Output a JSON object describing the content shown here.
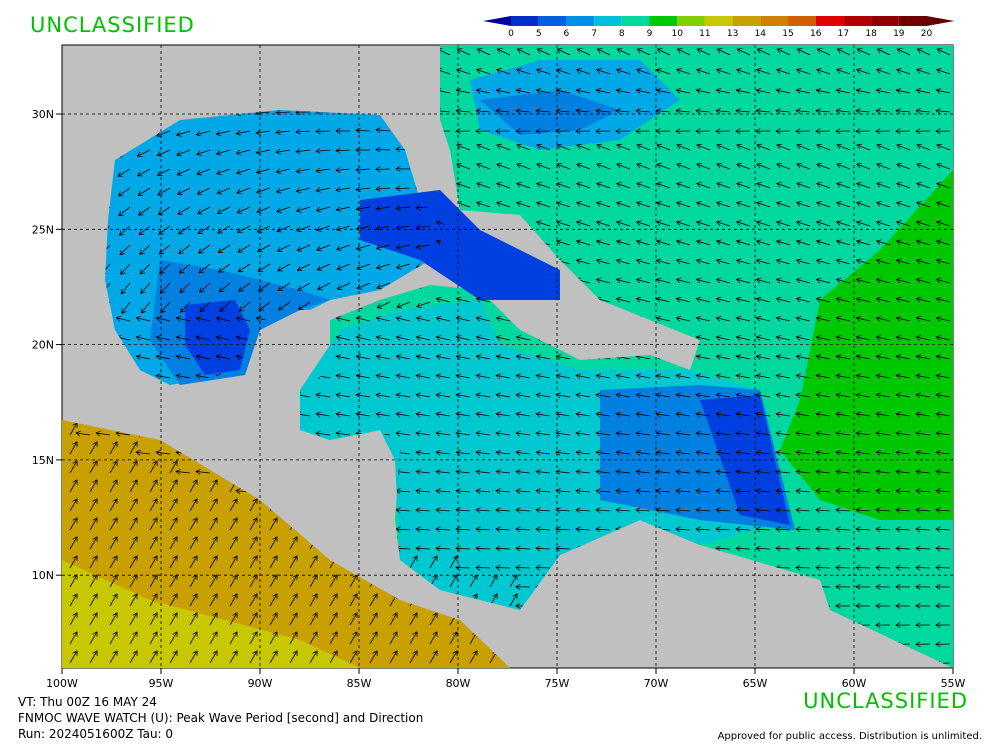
{
  "header": {
    "classification": "UNCLASSIFIED"
  },
  "colorbar": {
    "labels": [
      0,
      5,
      6,
      7,
      8,
      9,
      10,
      11,
      13,
      14,
      15,
      16,
      17,
      18,
      19,
      20
    ]
  },
  "map": {
    "lat_labels": [
      "30N",
      "25N",
      "20N",
      "15N",
      "10N"
    ],
    "lon_labels": [
      "100W",
      "95W",
      "90W",
      "85W",
      "80W",
      "75W",
      "70W",
      "65W",
      "60W",
      "55W"
    ]
  },
  "footer": {
    "lines": [
      "VT: Thu 00Z 16 MAY 24",
      "FNMOC WAVE WATCH (U): Peak Wave Period [second] and Direction",
      "Run: 2024051600Z Tau: 0"
    ],
    "classification": "UNCLASSIFIED",
    "approval": "Approved for public access. Distribution is unlimited."
  }
}
